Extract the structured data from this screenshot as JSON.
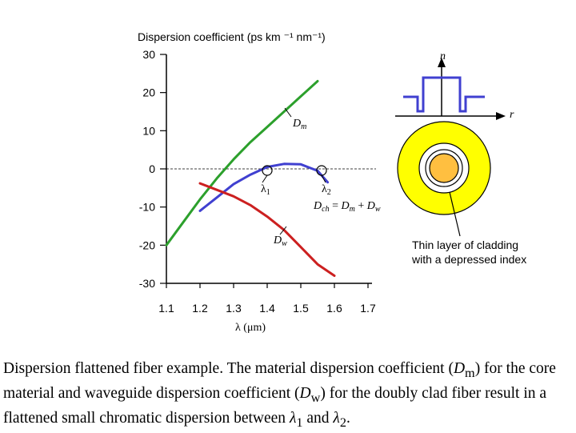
{
  "chart_data": {
    "type": "line",
    "ylabel": "Dispersion coefficient (ps km ⁻¹ nm⁻¹)",
    "xlabel": "λ  (μm)",
    "xlim": [
      1.1,
      1.7
    ],
    "ylim": [
      -30,
      30
    ],
    "x_ticks": [
      "1.1",
      "1.2",
      "1.3",
      "1.4",
      "1.5",
      "1.6",
      "1.7"
    ],
    "y_ticks": [
      "30",
      "20",
      "10",
      "0",
      "-10",
      "-20",
      "-30"
    ],
    "reference_line_y": 0,
    "series": [
      {
        "name": "Dm",
        "color": "#2ca02c",
        "x": [
          1.1,
          1.15,
          1.2,
          1.25,
          1.3,
          1.35,
          1.4,
          1.45,
          1.5,
          1.55
        ],
        "y": [
          -20,
          -14,
          -8,
          -2.5,
          2.5,
          7,
          11,
          15,
          19,
          23
        ]
      },
      {
        "name": "Dch = Dm + Dw",
        "color": "#4040d0",
        "x": [
          1.2,
          1.25,
          1.3,
          1.35,
          1.4,
          1.45,
          1.5,
          1.55,
          1.58
        ],
        "y": [
          -11,
          -7.5,
          -4,
          -1.5,
          0.5,
          1.3,
          1.2,
          -0.5,
          -3.5
        ]
      },
      {
        "name": "Dw",
        "color": "#cc2020",
        "x": [
          1.2,
          1.25,
          1.3,
          1.35,
          1.4,
          1.45,
          1.5,
          1.55,
          1.6
        ],
        "y": [
          -3.8,
          -5.5,
          -7.2,
          -9.5,
          -12.5,
          -16,
          -20.5,
          -25,
          -28
        ]
      }
    ],
    "annotations": [
      {
        "text": "λ1",
        "x": 1.4,
        "y": 0
      },
      {
        "text": "λ2",
        "x": 1.56,
        "y": 0
      }
    ],
    "series_labels": {
      "dm_main": "D",
      "dm_sub": "m",
      "dw_main": "D",
      "dw_sub": "w",
      "dch_d1": "D",
      "dch_ch": "ch",
      "dch_eq": " = ",
      "dch_d2": "D",
      "dch_m": "m",
      "dch_plus": " + ",
      "dch_d3": "D",
      "dch_w": "w"
    },
    "lambda1_label": "λ",
    "lambda1_sub": "1",
    "lambda2_label": "λ",
    "lambda2_sub": "2"
  },
  "inset": {
    "n_axis_label": "n",
    "r_axis_label": "r",
    "cladding_text_line1": "Thin layer of cladding",
    "cladding_text_line2": "with a depressed index",
    "colors": {
      "outer": "#ffff00",
      "inner_ring": "#ffffff",
      "core": "#ffbf40",
      "profile": "#4040d0"
    }
  },
  "caption": {
    "part1": "Dispersion flattened fiber example. The material dispersion coefficient (",
    "dm_main": "D",
    "dm_sub": "m",
    "part2": ") for the core material and waveguide dispersion coefficient (",
    "dw_main": "D",
    "dw_sub": "w",
    "part3": ")  for the doubly clad fiber result in a flattened small chromatic dispersion between ",
    "l1_main": "λ",
    "l1_sub": "1",
    "part4": " and ",
    "l2_main": "λ",
    "l2_sub": "2",
    "part5": "."
  }
}
